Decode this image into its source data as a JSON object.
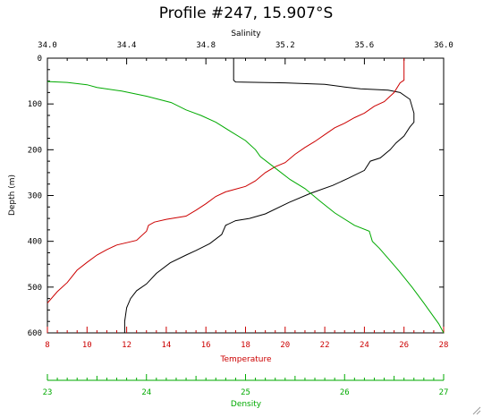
{
  "chart_data": {
    "type": "line",
    "title": "Profile #247, 15.907°S",
    "y_axis": {
      "label": "Depth (m)",
      "range": [
        0,
        600
      ],
      "inverted": true,
      "ticks": [
        0,
        100,
        200,
        300,
        400,
        500,
        600
      ],
      "tick_labels": [
        "0",
        "100",
        "200",
        "300",
        "400",
        "500",
        "600"
      ]
    },
    "x_axes": [
      {
        "id": "salinity",
        "label": "Salinity",
        "position": "top",
        "color": "#000000",
        "range": [
          34.0,
          36.0
        ],
        "ticks": [
          34.0,
          34.4,
          34.8,
          35.2,
          35.6,
          36.0
        ],
        "tick_labels": [
          "34.0",
          "34.4",
          "34.8",
          "35.2",
          "35.6",
          "36.0"
        ]
      },
      {
        "id": "temperature",
        "label": "Temperature",
        "position": "bottom",
        "color": "#cc0000",
        "range": [
          8,
          28
        ],
        "ticks": [
          8,
          10,
          12,
          14,
          16,
          18,
          20,
          22,
          24,
          26,
          28
        ],
        "tick_labels": [
          "8",
          "10",
          "12",
          "14",
          "16",
          "18",
          "20",
          "22",
          "24",
          "26",
          "28"
        ]
      },
      {
        "id": "density",
        "label": "Density",
        "position": "bottom-lower",
        "color": "#00aa00",
        "range": [
          23,
          27
        ],
        "ticks": [
          23,
          24,
          25,
          26,
          27
        ],
        "tick_labels": [
          "23",
          "24",
          "25",
          "26",
          "27"
        ]
      }
    ],
    "series": [
      {
        "axis": "salinity",
        "color": "#000000",
        "points": [
          [
            34.94,
            0
          ],
          [
            34.94,
            48
          ],
          [
            34.95,
            52
          ],
          [
            35.2,
            54
          ],
          [
            35.4,
            57
          ],
          [
            35.5,
            63
          ],
          [
            35.58,
            67
          ],
          [
            35.72,
            70
          ],
          [
            35.78,
            75
          ],
          [
            35.83,
            90
          ],
          [
            35.85,
            120
          ],
          [
            35.85,
            140
          ],
          [
            35.83,
            150
          ],
          [
            35.8,
            170
          ],
          [
            35.76,
            185
          ],
          [
            35.73,
            200
          ],
          [
            35.68,
            218
          ],
          [
            35.63,
            225
          ],
          [
            35.6,
            245
          ],
          [
            35.52,
            262
          ],
          [
            35.44,
            278
          ],
          [
            35.33,
            295
          ],
          [
            35.22,
            315
          ],
          [
            35.1,
            340
          ],
          [
            35.02,
            350
          ],
          [
            34.95,
            355
          ],
          [
            34.9,
            365
          ],
          [
            34.88,
            385
          ],
          [
            34.82,
            405
          ],
          [
            34.75,
            420
          ],
          [
            34.7,
            430
          ],
          [
            34.62,
            447
          ],
          [
            34.55,
            470
          ],
          [
            34.5,
            493
          ],
          [
            34.45,
            508
          ],
          [
            34.42,
            525
          ],
          [
            34.4,
            545
          ],
          [
            34.39,
            575
          ],
          [
            34.39,
            600
          ]
        ]
      },
      {
        "axis": "temperature",
        "color": "#cc0000",
        "points": [
          [
            26.0,
            0
          ],
          [
            26.0,
            48
          ],
          [
            25.8,
            54
          ],
          [
            25.5,
            75
          ],
          [
            25.0,
            95
          ],
          [
            24.5,
            105
          ],
          [
            24.0,
            120
          ],
          [
            23.5,
            130
          ],
          [
            23.0,
            142
          ],
          [
            22.5,
            152
          ],
          [
            22.0,
            167
          ],
          [
            21.5,
            182
          ],
          [
            21.0,
            195
          ],
          [
            20.5,
            210
          ],
          [
            20.0,
            228
          ],
          [
            19.5,
            237
          ],
          [
            19.0,
            250
          ],
          [
            18.5,
            268
          ],
          [
            18.0,
            280
          ],
          [
            17.0,
            292
          ],
          [
            16.5,
            302
          ],
          [
            16.0,
            318
          ],
          [
            15.5,
            332
          ],
          [
            15.0,
            345
          ],
          [
            14.0,
            352
          ],
          [
            13.4,
            358
          ],
          [
            13.1,
            365
          ],
          [
            13.0,
            378
          ],
          [
            12.5,
            398
          ],
          [
            11.5,
            408
          ],
          [
            11.0,
            418
          ],
          [
            10.5,
            430
          ],
          [
            10.0,
            446
          ],
          [
            9.5,
            463
          ],
          [
            9.0,
            490
          ],
          [
            8.5,
            510
          ],
          [
            8.0,
            535
          ]
        ]
      },
      {
        "axis": "density",
        "color": "#00aa00",
        "points": [
          [
            23.0,
            51
          ],
          [
            23.2,
            53
          ],
          [
            23.4,
            58
          ],
          [
            23.5,
            64
          ],
          [
            23.75,
            72
          ],
          [
            24.0,
            83
          ],
          [
            24.25,
            97
          ],
          [
            24.4,
            113
          ],
          [
            24.55,
            125
          ],
          [
            24.7,
            140
          ],
          [
            24.85,
            160
          ],
          [
            25.0,
            180
          ],
          [
            25.1,
            200
          ],
          [
            25.15,
            215
          ],
          [
            25.3,
            240
          ],
          [
            25.45,
            265
          ],
          [
            25.6,
            285
          ],
          [
            25.75,
            312
          ],
          [
            25.9,
            338
          ],
          [
            26.1,
            365
          ],
          [
            26.25,
            378
          ],
          [
            26.28,
            400
          ],
          [
            26.35,
            415
          ],
          [
            26.45,
            440
          ],
          [
            26.55,
            465
          ],
          [
            26.68,
            500
          ],
          [
            26.8,
            535
          ],
          [
            26.9,
            565
          ],
          [
            26.95,
            580
          ],
          [
            27.0,
            600
          ]
        ]
      }
    ]
  }
}
